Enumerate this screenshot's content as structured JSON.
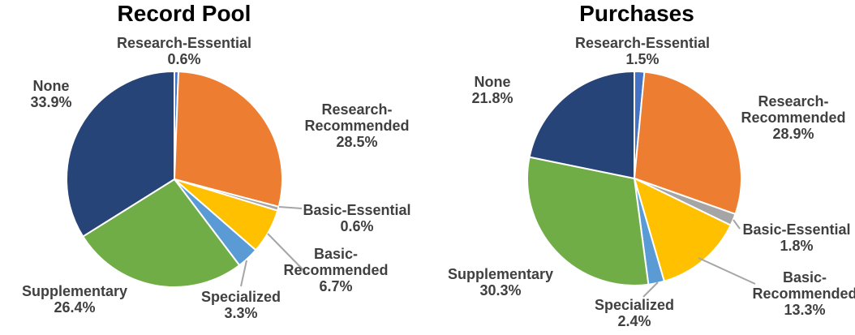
{
  "palette": {
    "title_text": "#000000",
    "label_text": "#404040",
    "leader_line": "#A6A6A6",
    "slice_separator": "#FFFFFF"
  },
  "chart_data": [
    {
      "type": "pie",
      "title": "Record Pool",
      "start_angle_deg": 0,
      "direction": "clockwise",
      "legend": "none",
      "slices": [
        {
          "label": "Research-Essential",
          "value": 0.6,
          "pct_label": "0.6%",
          "color": "#4472C4"
        },
        {
          "label": "Research-Recommended",
          "value": 28.5,
          "pct_label": "28.5%",
          "color": "#ED7D31"
        },
        {
          "label": "Basic-Essential",
          "value": 0.6,
          "pct_label": "0.6%",
          "color": "#A5A5A5"
        },
        {
          "label": "Basic-Recommended",
          "value": 6.7,
          "pct_label": "6.7%",
          "color": "#FFC000"
        },
        {
          "label": "Specialized",
          "value": 3.3,
          "pct_label": "3.3%",
          "color": "#5B9BD5"
        },
        {
          "label": "Supplementary",
          "value": 26.4,
          "pct_label": "26.4%",
          "color": "#70AD47"
        },
        {
          "label": "None",
          "value": 33.9,
          "pct_label": "33.9%",
          "color": "#264478"
        }
      ]
    },
    {
      "type": "pie",
      "title": "Purchases",
      "start_angle_deg": 0,
      "direction": "clockwise",
      "legend": "none",
      "slices": [
        {
          "label": "Research-Essential",
          "value": 1.5,
          "pct_label": "1.5%",
          "color": "#4472C4"
        },
        {
          "label": "Research-Recommended",
          "value": 28.9,
          "pct_label": "28.9%",
          "color": "#ED7D31"
        },
        {
          "label": "Basic-Essential",
          "value": 1.8,
          "pct_label": "1.8%",
          "color": "#A5A5A5"
        },
        {
          "label": "Basic-Recommended",
          "value": 13.3,
          "pct_label": "13.3%",
          "color": "#FFC000"
        },
        {
          "label": "Specialized",
          "value": 2.4,
          "pct_label": "2.4%",
          "color": "#5B9BD5"
        },
        {
          "label": "Supplementary",
          "value": 30.3,
          "pct_label": "30.3%",
          "color": "#70AD47"
        },
        {
          "label": "None",
          "value": 21.8,
          "pct_label": "21.8%",
          "color": "#264478"
        }
      ]
    }
  ]
}
